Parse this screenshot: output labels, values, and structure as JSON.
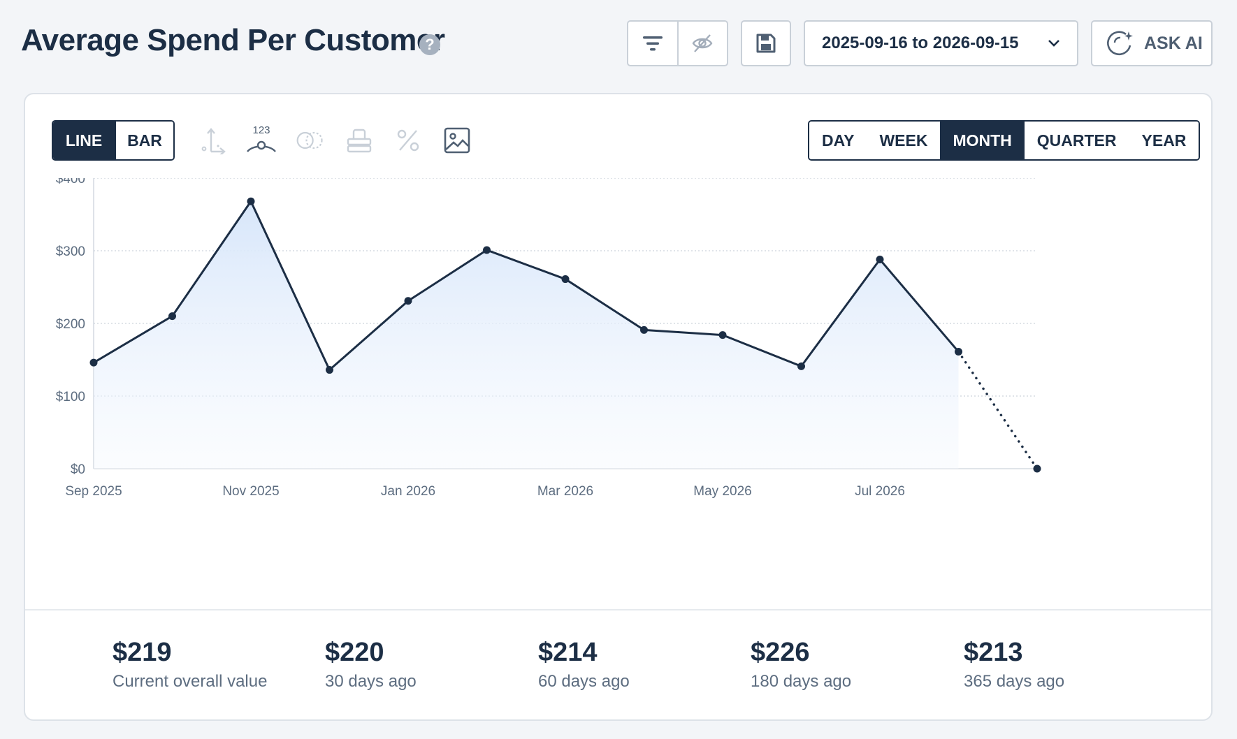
{
  "header": {
    "title": "Average Spend Per Customer",
    "help_glyph": "?",
    "date_range": "2025-09-16 to 2026-09-15",
    "ask_ai_label": "ASK AI"
  },
  "toolbar": {
    "chart_types": [
      {
        "label": "LINE",
        "active": true
      },
      {
        "label": "BAR",
        "active": false
      }
    ],
    "data_labels_glyph": "123",
    "periods": [
      {
        "label": "DAY",
        "active": false
      },
      {
        "label": "WEEK",
        "active": false
      },
      {
        "label": "MONTH",
        "active": true
      },
      {
        "label": "QUARTER",
        "active": false
      },
      {
        "label": "YEAR",
        "active": false
      }
    ]
  },
  "chart_data": {
    "type": "area",
    "x": [
      "2025-09",
      "2025-10",
      "2025-11",
      "2025-12",
      "2026-01",
      "2026-02",
      "2026-03",
      "2026-04",
      "2026-05",
      "2026-06",
      "2026-07",
      "2026-08",
      "2026-09"
    ],
    "tick_labels": [
      "Sep 2025",
      "Nov 2025",
      "Jan 2026",
      "Mar 2026",
      "May 2026",
      "Jul 2026"
    ],
    "tick_indices": [
      0,
      2,
      4,
      6,
      8,
      10
    ],
    "series": [
      {
        "values": [
          146,
          210,
          368,
          136,
          231,
          301,
          261,
          191,
          184,
          141,
          288,
          161,
          0
        ],
        "incomplete_last_point": true
      }
    ],
    "ylim": [
      0,
      400
    ],
    "yticks": [
      0,
      100,
      200,
      300,
      400
    ],
    "ytick_labels": [
      "$0",
      "$100",
      "$200",
      "$300",
      "$400"
    ],
    "grid": true,
    "colors": {
      "line": "#1c2e45",
      "fill": "#dce9fb"
    }
  },
  "stats": [
    {
      "value": "$219",
      "label": "Current overall value"
    },
    {
      "value": "$220",
      "label": "30 days ago"
    },
    {
      "value": "$214",
      "label": "60 days ago"
    },
    {
      "value": "$226",
      "label": "180 days ago"
    },
    {
      "value": "$213",
      "label": "365 days ago"
    }
  ]
}
